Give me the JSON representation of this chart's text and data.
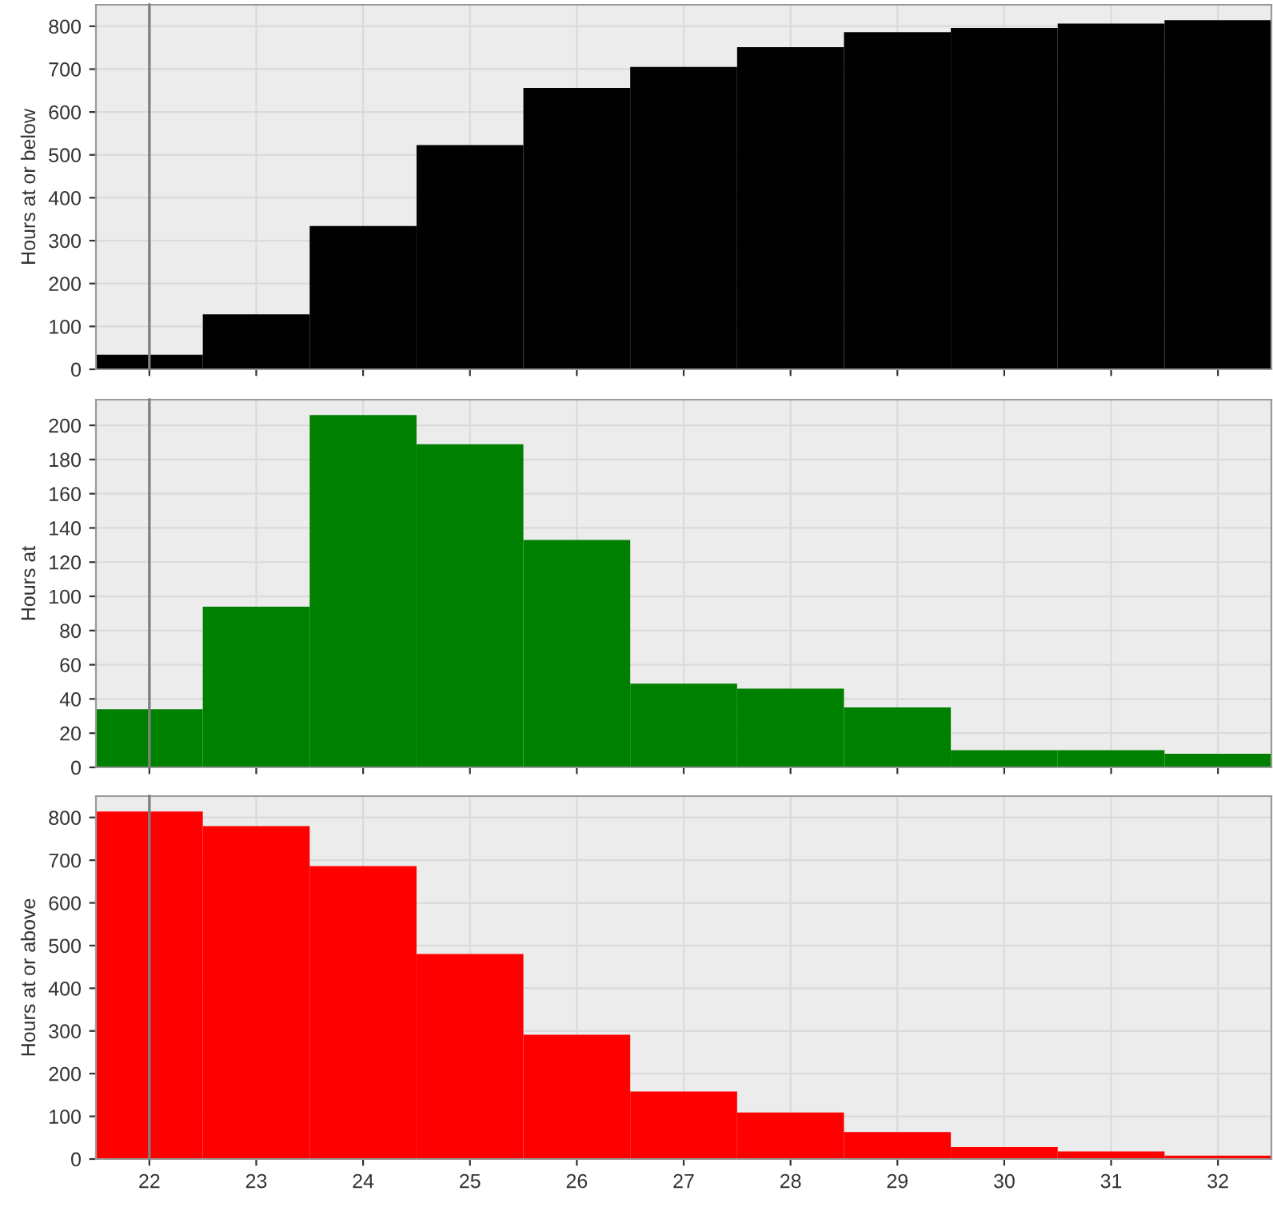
{
  "chart_data": [
    {
      "type": "histogram",
      "ylabel": "Hours at or below",
      "bins": [
        21.5,
        22.5,
        23.5,
        24.5,
        25.5,
        26.5,
        27.5,
        28.5,
        29.5,
        30.5,
        31.5,
        32.5
      ],
      "values": [
        34,
        128,
        334,
        523,
        656,
        705,
        751,
        786,
        796,
        806,
        814
      ],
      "color": "#000000",
      "xlim": [
        21.5,
        32.5
      ],
      "xticks": [
        22,
        23,
        24,
        25,
        26,
        27,
        28,
        29,
        30,
        31,
        32
      ],
      "ylim": [
        0,
        850
      ],
      "yticks": [
        0,
        100,
        200,
        300,
        400,
        500,
        600,
        700,
        800
      ],
      "grid": true,
      "tick_labels": "y",
      "ref_lines": [
        {
          "axis": "x",
          "value": 22,
          "color": "#808080"
        }
      ]
    },
    {
      "type": "histogram",
      "ylabel": "Hours at",
      "bins": [
        21.5,
        22.5,
        23.5,
        24.5,
        25.5,
        26.5,
        27.5,
        28.5,
        29.5,
        30.5,
        31.5,
        32.5
      ],
      "values": [
        34,
        94,
        206,
        189,
        133,
        49,
        46,
        35,
        10,
        10,
        8
      ],
      "color": "#008000",
      "xlim": [
        21.5,
        32.5
      ],
      "xticks": [
        22,
        23,
        24,
        25,
        26,
        27,
        28,
        29,
        30,
        31,
        32
      ],
      "ylim": [
        0,
        215
      ],
      "yticks": [
        0,
        20,
        40,
        60,
        80,
        100,
        120,
        140,
        160,
        180,
        200
      ],
      "grid": true,
      "tick_labels": "y",
      "ref_lines": [
        {
          "axis": "x",
          "value": 22,
          "color": "#808080"
        }
      ]
    },
    {
      "type": "histogram",
      "ylabel": "Hours at or above",
      "bins": [
        21.5,
        22.5,
        23.5,
        24.5,
        25.5,
        26.5,
        27.5,
        28.5,
        29.5,
        30.5,
        31.5,
        32.5
      ],
      "values": [
        814,
        780,
        686,
        480,
        291,
        158,
        109,
        63,
        28,
        18,
        8
      ],
      "color": "#ff0000",
      "xlim": [
        21.5,
        32.5
      ],
      "xticks": [
        22,
        23,
        24,
        25,
        26,
        27,
        28,
        29,
        30,
        31,
        32
      ],
      "ylim": [
        0,
        850
      ],
      "yticks": [
        0,
        100,
        200,
        300,
        400,
        500,
        600,
        700,
        800
      ],
      "grid": true,
      "ref_lines": [
        {
          "axis": "x",
          "value": 22,
          "color": "#808080"
        }
      ]
    }
  ]
}
